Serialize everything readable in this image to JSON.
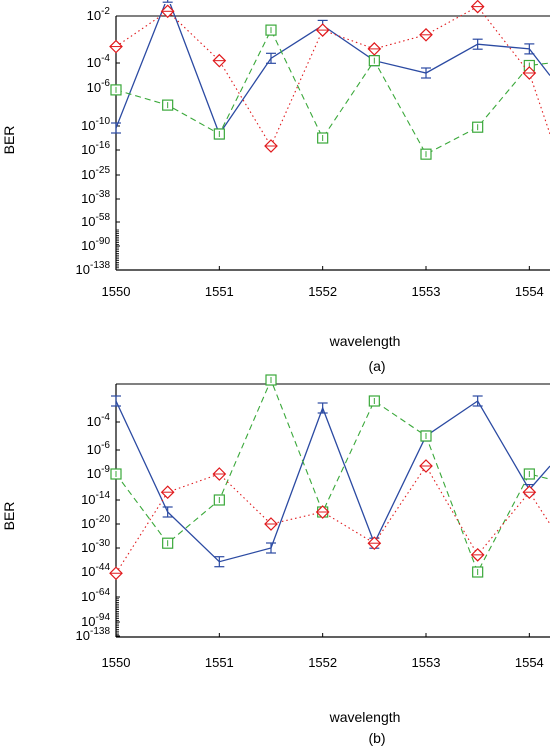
{
  "colors": {
    "series_blue": "#2b4aa2",
    "series_green": "#3aa83a",
    "series_red": "#e0191c"
  },
  "chart_data": [
    {
      "type": "line",
      "panel_label": "(a)",
      "xlabel": "wavelength",
      "ylabel": "BER",
      "xlim": [
        1550,
        1554.2
      ],
      "x_ticks": [
        "1550",
        "1551",
        "1552",
        "1553",
        "1554"
      ],
      "y_ticks": [
        {
          "base": "10",
          "exp": "-2"
        },
        {
          "base": "10",
          "exp": "-4"
        },
        {
          "base": "10",
          "exp": "-6"
        },
        {
          "base": "10",
          "exp": "-10"
        },
        {
          "base": "10",
          "exp": "-16"
        },
        {
          "base": "10",
          "exp": "-25"
        },
        {
          "base": "10",
          "exp": "-38"
        },
        {
          "base": "10",
          "exp": "-58"
        },
        {
          "base": "10",
          "exp": "-90"
        },
        {
          "base": "10",
          "exp": "-138"
        }
      ],
      "x": [
        1550,
        1550.5,
        1551,
        1551.5,
        1552,
        1552.5,
        1553,
        1553.5,
        1554,
        1554.2
      ],
      "series": [
        {
          "style": "solid",
          "marker": "errorbar",
          "color_key": "series_blue",
          "exponents": [
            -10.5,
            -1.2,
            -12,
            -3.8,
            -2.4,
            -3.9,
            -4.8,
            -3.2,
            -3.4,
            -5
          ]
        },
        {
          "style": "dashed",
          "marker": "square",
          "color_key": "series_green",
          "exponents": [
            -6.2,
            -7.8,
            -12,
            -2.6,
            -13,
            -3.9,
            -17.5,
            -10.3,
            -4.2,
            -4
          ]
        },
        {
          "style": "dotted",
          "marker": "diamond",
          "color_key": "series_red",
          "exponents": [
            -3.3,
            -1.8,
            -3.9,
            -15,
            -2.6,
            -3.4,
            -2.8,
            -1.6,
            -4.8,
            -12
          ]
        }
      ]
    },
    {
      "type": "line",
      "panel_label": "(b)",
      "xlabel": "wavelength",
      "ylabel": "BER",
      "xlim": [
        1550,
        1554.2
      ],
      "x_ticks": [
        "1550",
        "1551",
        "1552",
        "1553",
        "1554"
      ],
      "y_ticks": [
        {
          "base": "10",
          "exp": "-4"
        },
        {
          "base": "10",
          "exp": "-6"
        },
        {
          "base": "10",
          "exp": "-9"
        },
        {
          "base": "10",
          "exp": "-14"
        },
        {
          "base": "10",
          "exp": "-20"
        },
        {
          "base": "10",
          "exp": "-30"
        },
        {
          "base": "10",
          "exp": "-44"
        },
        {
          "base": "10",
          "exp": "-64"
        },
        {
          "base": "10",
          "exp": "-94"
        },
        {
          "base": "10",
          "exp": "-138"
        }
      ],
      "x": [
        1550,
        1550.5,
        1551,
        1551.5,
        1552,
        1552.5,
        1553,
        1553.5,
        1554,
        1554.2
      ],
      "series": [
        {
          "style": "solid",
          "marker": "errorbar",
          "color_key": "series_blue",
          "exponents": [
            -2.5,
            -17,
            -38,
            -30,
            -3,
            -28,
            -5,
            -2.5,
            -12,
            -8
          ]
        },
        {
          "style": "dashed",
          "marker": "square",
          "color_key": "series_green",
          "exponents": [
            -9,
            -28,
            -14,
            -1,
            -17,
            -2.5,
            -5,
            -44,
            -9,
            -10
          ]
        },
        {
          "style": "dotted",
          "marker": "diamond",
          "color_key": "series_red",
          "exponents": [
            -45,
            -12.5,
            -9,
            -20,
            -17,
            -28,
            -8,
            -34,
            -12.5,
            -20
          ]
        }
      ]
    }
  ]
}
